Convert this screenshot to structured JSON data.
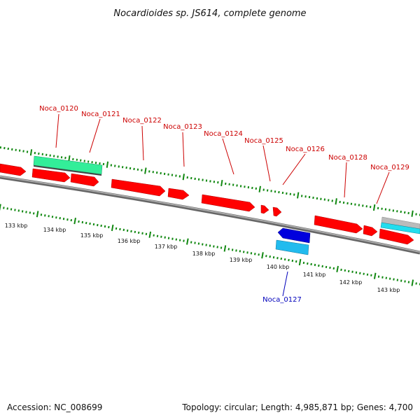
{
  "title": "Nocardioides sp. JS614, complete genome",
  "footer": {
    "accession": "Accession: NC_008699",
    "summary": "Topology: circular; Length: 4,985,871 bp; Genes: 4,700"
  },
  "colors": {
    "forward_gene": "#ff0000",
    "reverse_gene": "#0000dd",
    "label_forward": "#cc0000",
    "label_reverse": "#0000bb",
    "tick": "#118811",
    "backbone": "#888888",
    "rna_feature": "#33ee99",
    "cyan_feature": "#22ddee",
    "grey_feature": "#bbbbbb"
  },
  "gene_labels": [
    {
      "text": "Noca_0120",
      "strand": "forward"
    },
    {
      "text": "Noca_0121",
      "strand": "forward"
    },
    {
      "text": "Noca_0122",
      "strand": "forward"
    },
    {
      "text": "Noca_0123",
      "strand": "forward"
    },
    {
      "text": "Noca_0124",
      "strand": "forward"
    },
    {
      "text": "Noca_0125",
      "strand": "forward"
    },
    {
      "text": "Noca_0126",
      "strand": "forward"
    },
    {
      "text": "Noca_0128",
      "strand": "forward"
    },
    {
      "text": "Noca_0129",
      "strand": "forward"
    },
    {
      "text": "Noca_0127",
      "strand": "reverse"
    }
  ],
  "scale_labels": [
    "133 kbp",
    "134 kbp",
    "135 kbp",
    "136 kbp",
    "137 kbp",
    "138 kbp",
    "139 kbp",
    "140 kbp",
    "141 kbp",
    "142 kbp",
    "143 kbp"
  ]
}
